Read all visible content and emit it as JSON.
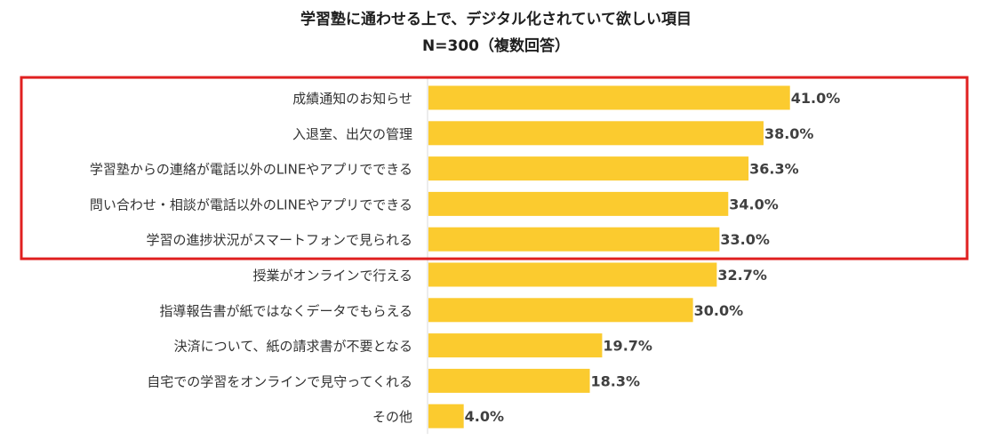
{
  "chart_data": {
    "type": "bar",
    "orientation": "horizontal",
    "title": "学習塾に通わせる上で、デジタル化されていて欲しい項目",
    "subtitle": "N=300（複数回答）",
    "categories": [
      "成績通知のお知らせ",
      "入退室、出欠の管理",
      "学習塾からの連絡が電話以外のLINEやアプリでできる",
      "問い合わせ・相談が電話以外のLINEやアプリでできる",
      "学習の進捗状況がスマートフォンで見られる",
      "授業がオンラインで行える",
      "指導報告書が紙ではなくデータでもらえる",
      "決済について、紙の請求書が不要となる",
      "自宅での学習をオンラインで見守ってくれる",
      "その他"
    ],
    "values": [
      41.0,
      38.0,
      36.3,
      34.0,
      33.0,
      32.7,
      30.0,
      19.7,
      18.3,
      4.0
    ],
    "value_labels": [
      "41.0%",
      "38.0%",
      "36.3%",
      "34.0%",
      "33.0%",
      "32.7%",
      "30.0%",
      "19.7%",
      "18.3%",
      "4.0%"
    ],
    "xlim": [
      0,
      45
    ],
    "highlighted_count": 5,
    "bar_color": "#FBCB2F",
    "highlight_box_color": "#E02020",
    "grid": false,
    "legend": "none"
  }
}
